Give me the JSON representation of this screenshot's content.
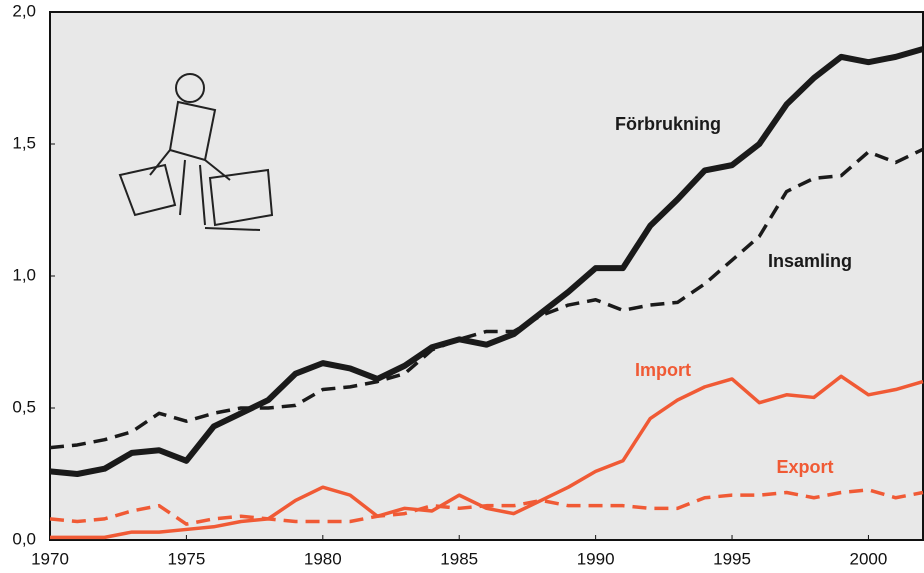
{
  "chart_data": {
    "type": "line",
    "x": [
      1970,
      1971,
      1972,
      1973,
      1974,
      1975,
      1976,
      1977,
      1978,
      1979,
      1980,
      1981,
      1982,
      1983,
      1984,
      1985,
      1986,
      1987,
      1988,
      1989,
      1990,
      1991,
      1992,
      1993,
      1994,
      1995,
      1996,
      1997,
      1998,
      1999,
      2000,
      2001,
      2002
    ],
    "series": [
      {
        "name": "Förbrukning",
        "color": "#1a1a1a",
        "dashed": false,
        "values": [
          0.26,
          0.25,
          0.27,
          0.33,
          0.34,
          0.3,
          0.43,
          0.48,
          0.53,
          0.63,
          0.67,
          0.65,
          0.61,
          0.66,
          0.73,
          0.76,
          0.74,
          0.78,
          0.86,
          0.94,
          1.03,
          1.03,
          1.19,
          1.29,
          1.4,
          1.42,
          1.5,
          1.65,
          1.75,
          1.83,
          1.81,
          1.83,
          1.86
        ]
      },
      {
        "name": "Insamling",
        "color": "#1a1a1a",
        "dashed": true,
        "values": [
          0.35,
          0.36,
          0.38,
          0.41,
          0.48,
          0.45,
          0.48,
          0.5,
          0.5,
          0.51,
          0.57,
          0.58,
          0.6,
          0.63,
          0.72,
          0.76,
          0.79,
          0.79,
          0.85,
          0.89,
          0.91,
          0.87,
          0.89,
          0.9,
          0.97,
          1.06,
          1.15,
          1.32,
          1.37,
          1.38,
          1.47,
          1.43,
          1.48
        ]
      },
      {
        "name": "Import",
        "color": "#f05a35",
        "dashed": false,
        "values": [
          0.01,
          0.01,
          0.01,
          0.03,
          0.03,
          0.04,
          0.05,
          0.07,
          0.08,
          0.15,
          0.2,
          0.17,
          0.09,
          0.12,
          0.11,
          0.17,
          0.12,
          0.1,
          0.15,
          0.2,
          0.26,
          0.3,
          0.46,
          0.53,
          0.58,
          0.61,
          0.52,
          0.55,
          0.54,
          0.62,
          0.55,
          0.57,
          0.6
        ]
      },
      {
        "name": "Export",
        "color": "#f05a35",
        "dashed": true,
        "values": [
          0.08,
          0.07,
          0.08,
          0.11,
          0.13,
          0.06,
          0.08,
          0.09,
          0.08,
          0.07,
          0.07,
          0.07,
          0.09,
          0.1,
          0.13,
          0.12,
          0.13,
          0.13,
          0.15,
          0.13,
          0.13,
          0.13,
          0.12,
          0.12,
          0.16,
          0.17,
          0.17,
          0.18,
          0.16,
          0.18,
          0.19,
          0.16,
          0.18
        ]
      }
    ],
    "xlim": [
      1970,
      2002
    ],
    "xticks": [
      1970,
      1975,
      1980,
      1985,
      1990,
      1995,
      2000
    ],
    "ylim": [
      0,
      2
    ],
    "yticks": [
      {
        "value": 0,
        "label": "0,0"
      },
      {
        "value": 0.5,
        "label": "0,5"
      },
      {
        "value": 1,
        "label": "1,0"
      },
      {
        "value": 1.5,
        "label": "1,5"
      },
      {
        "value": 2,
        "label": "2,0"
      }
    ]
  }
}
